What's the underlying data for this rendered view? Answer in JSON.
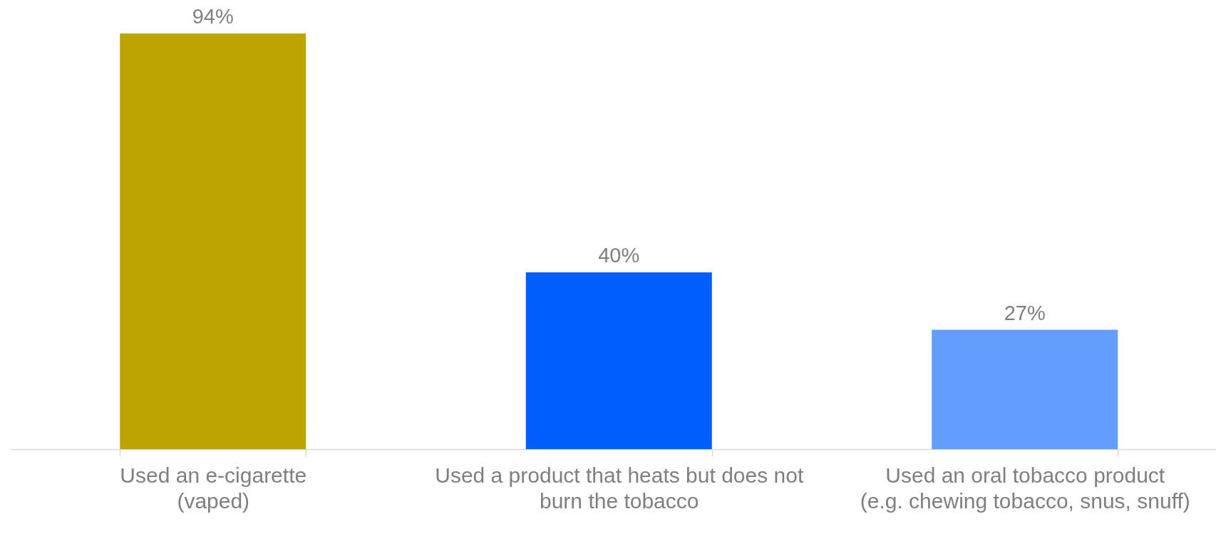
{
  "chart_data": {
    "type": "bar",
    "categories": [
      "Used an e-cigarette\n(vaped)",
      "Used a product that heats but does not\nburn the tobacco",
      "Used an oral tobacco product\n(e.g. chewing tobacco, snus, snuff)"
    ],
    "values": [
      94,
      40,
      27
    ],
    "colors": [
      "#bda400",
      "#005eff",
      "#639eff"
    ],
    "value_labels": [
      "94%",
      "40%",
      "27%"
    ]
  }
}
